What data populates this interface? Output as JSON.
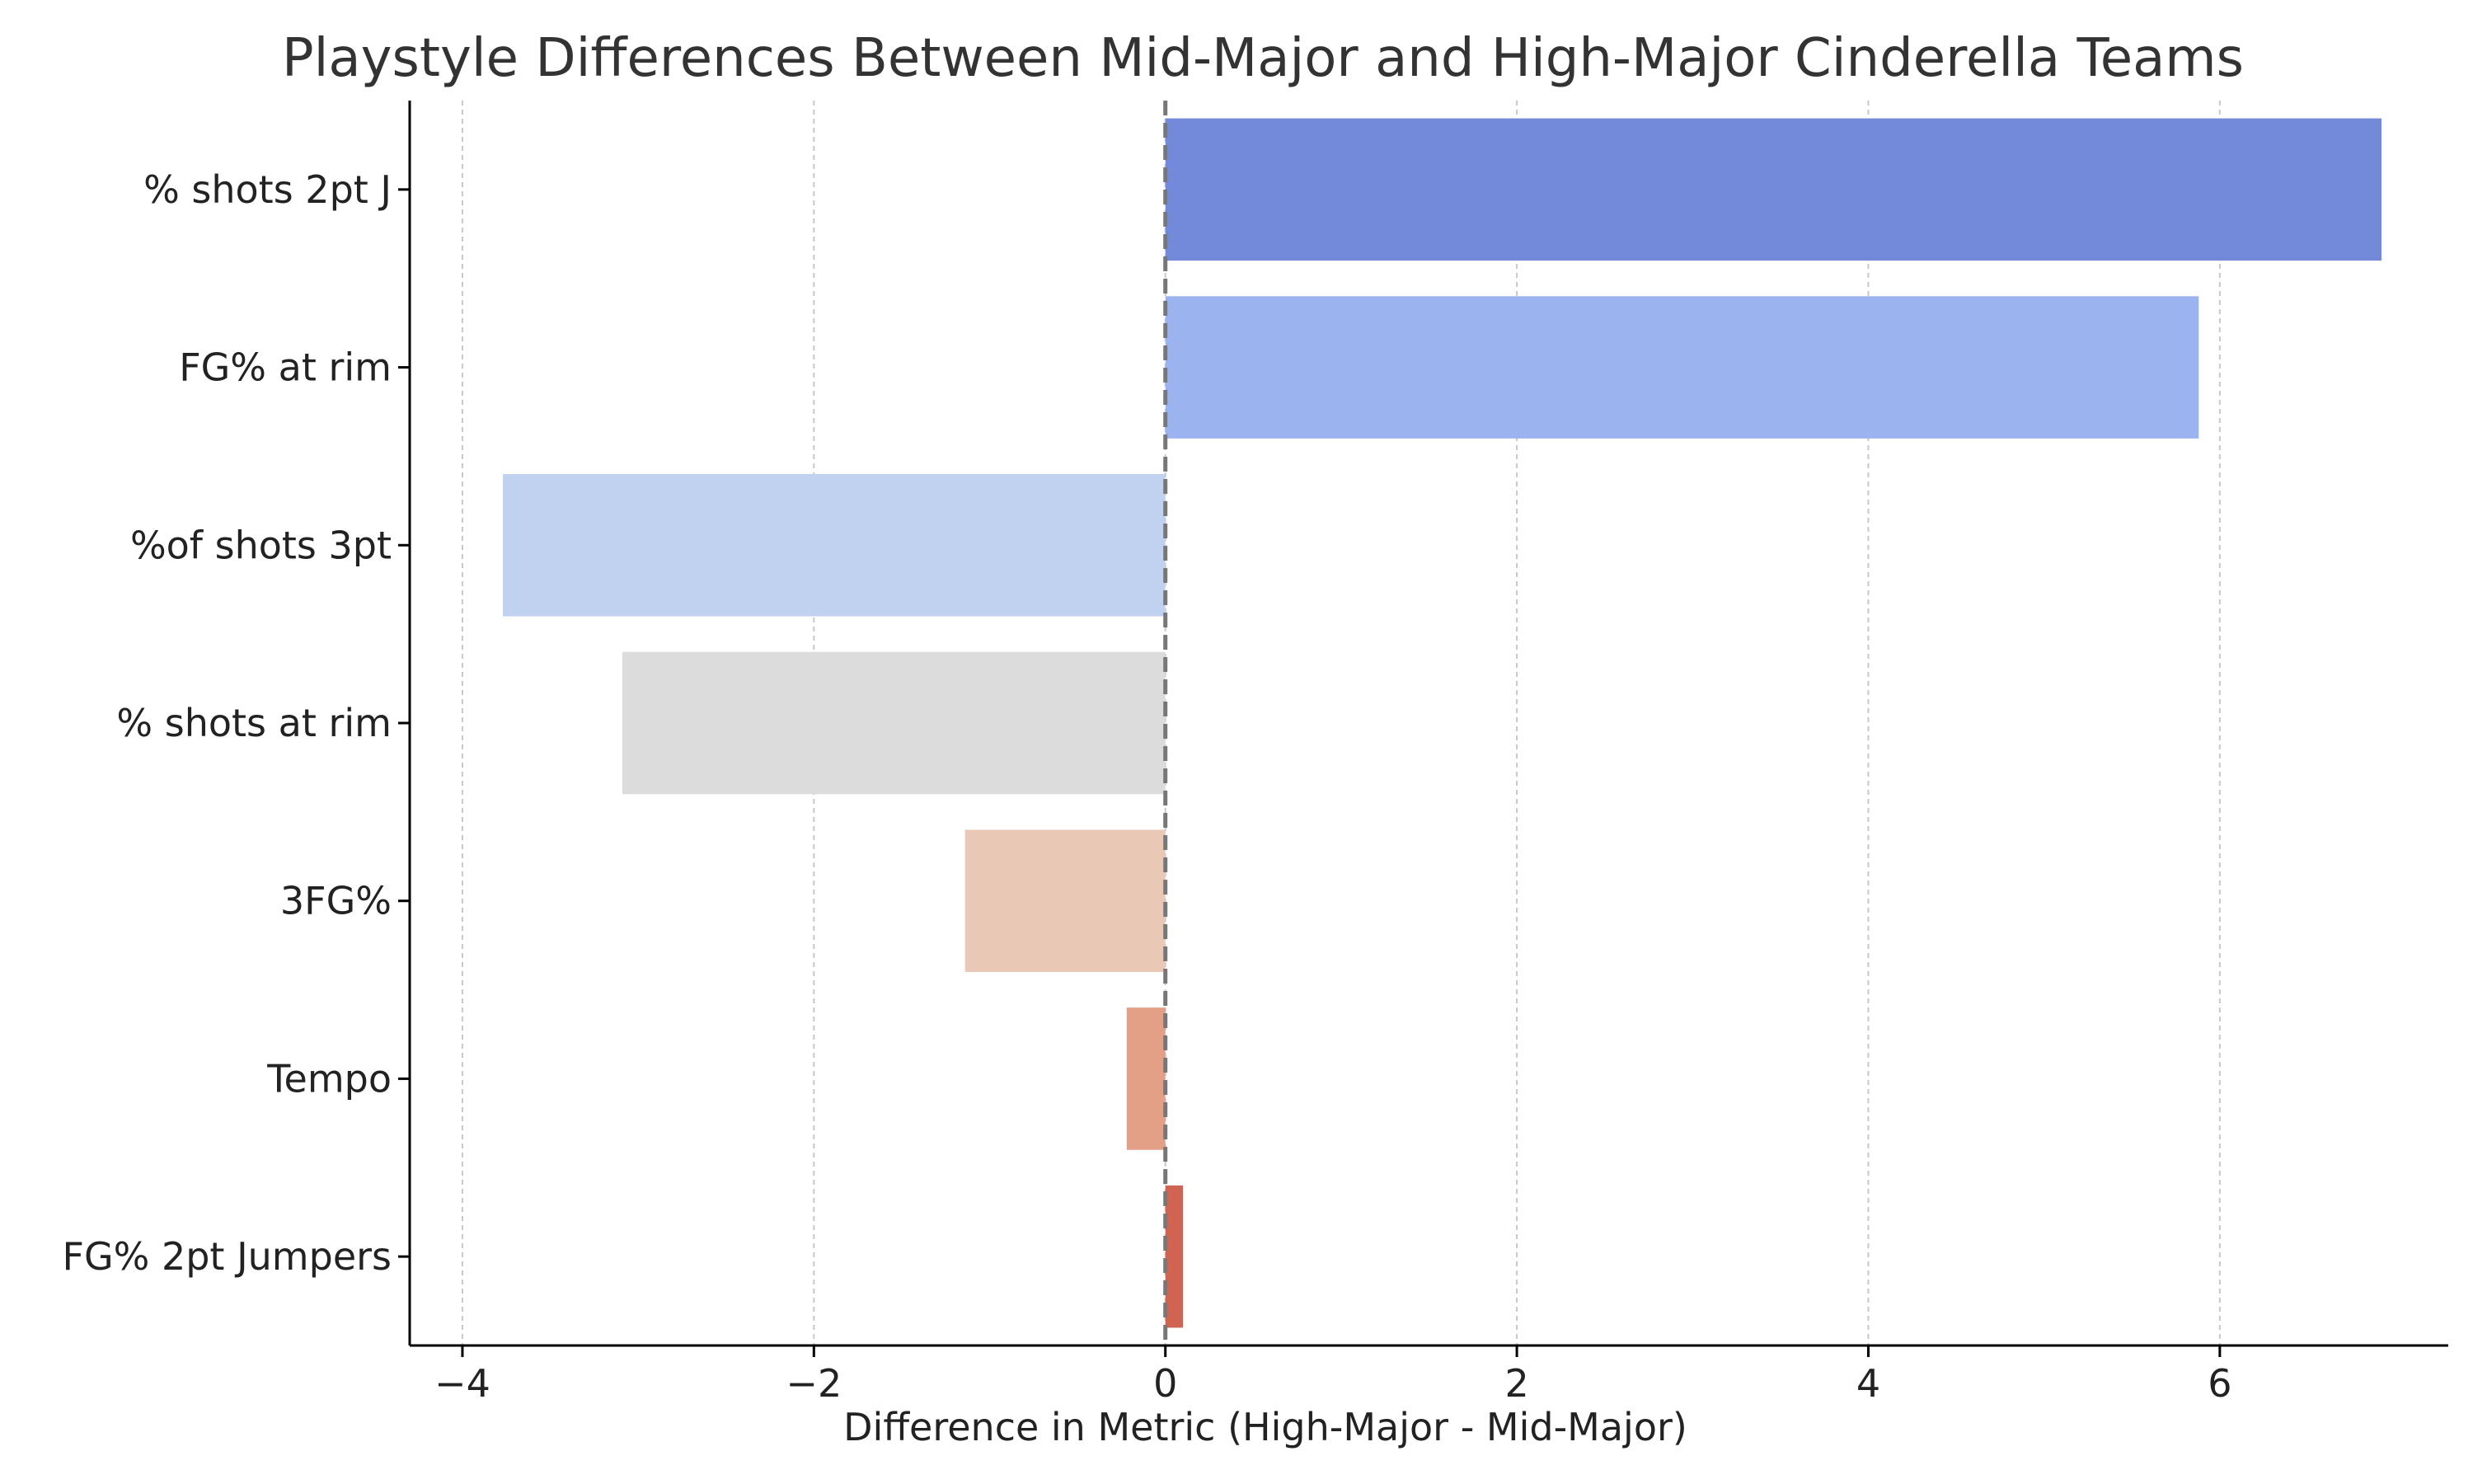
{
  "chart_data": {
    "type": "bar",
    "orientation": "horizontal",
    "title": "Playstyle Differences Between Mid-Major and High-Major Cinderella Teams",
    "xlabel": "Difference in Metric (High-Major - Mid-Major)",
    "ylabel": "",
    "xlim": [
      -4.3,
      7.3
    ],
    "xticks": [
      -4,
      -2,
      0,
      2,
      4,
      6
    ],
    "xtick_labels": [
      "−4",
      "−2",
      "0",
      "2",
      "4",
      "6"
    ],
    "grid": "vertical dashed",
    "reference_line": 0,
    "categories": [
      "% shots 2pt J",
      "FG% at rim",
      "%of shots 3pt",
      "% shots at rim",
      "3FG%",
      "Tempo",
      "FG% 2pt Jumpers"
    ],
    "values": [
      6.92,
      5.88,
      -3.77,
      -3.09,
      -1.14,
      -0.22,
      0.1
    ],
    "colors": [
      "#7389d9",
      "#9bb4ef",
      "#c1d2f0",
      "#dcdcdc",
      "#eac8b6",
      "#e49f87",
      "#cf6452"
    ]
  }
}
